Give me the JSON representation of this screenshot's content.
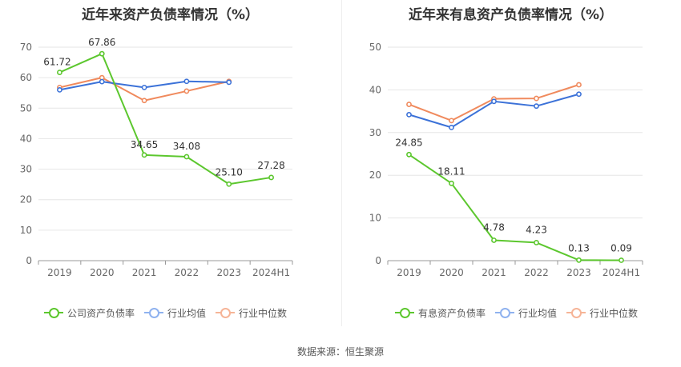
{
  "chart_data": [
    {
      "type": "line",
      "title": "近年来资产负债率情况（%）",
      "categories": [
        "2019",
        "2020",
        "2021",
        "2022",
        "2023",
        "2024H1"
      ],
      "yticks": [
        "0",
        "10",
        "20",
        "30",
        "40",
        "50",
        "60",
        "70"
      ],
      "ylim": [
        0,
        70
      ],
      "series": [
        {
          "name": "公司资产负债率",
          "color": "#5cc72e",
          "values": [
            61.72,
            67.86,
            34.65,
            34.08,
            25.1,
            27.28
          ],
          "labels": [
            "61.72",
            "67.86",
            "34.65",
            "34.08",
            "25.10",
            "27.28"
          ]
        },
        {
          "name": "行业均值",
          "color": "#3c72d8",
          "values": [
            56.0,
            58.7,
            56.8,
            58.8,
            58.5,
            null
          ]
        },
        {
          "name": "行业中位数",
          "color": "#f08a5d",
          "values": [
            56.8,
            60.0,
            52.5,
            55.6,
            58.8,
            null
          ]
        }
      ]
    },
    {
      "type": "line",
      "title": "近年来有息资产负债率情况（%）",
      "categories": [
        "2019",
        "2020",
        "2021",
        "2022",
        "2023",
        "2024H1"
      ],
      "yticks": [
        "0",
        "10",
        "20",
        "30",
        "40",
        "50"
      ],
      "ylim": [
        0,
        50
      ],
      "series": [
        {
          "name": "有息资产负债率",
          "color": "#5cc72e",
          "values": [
            24.85,
            18.11,
            4.78,
            4.23,
            0.13,
            0.09
          ],
          "labels": [
            "24.85",
            "18.11",
            "4.78",
            "4.23",
            "0.13",
            "0.09"
          ]
        },
        {
          "name": "行业均值",
          "color": "#3c72d8",
          "values": [
            34.2,
            31.2,
            37.3,
            36.2,
            39.0,
            null
          ]
        },
        {
          "name": "行业中位数",
          "color": "#f08a5d",
          "values": [
            36.6,
            32.8,
            37.9,
            38.0,
            41.2,
            null
          ]
        }
      ]
    }
  ],
  "source_text": "数据来源：恒生聚源"
}
